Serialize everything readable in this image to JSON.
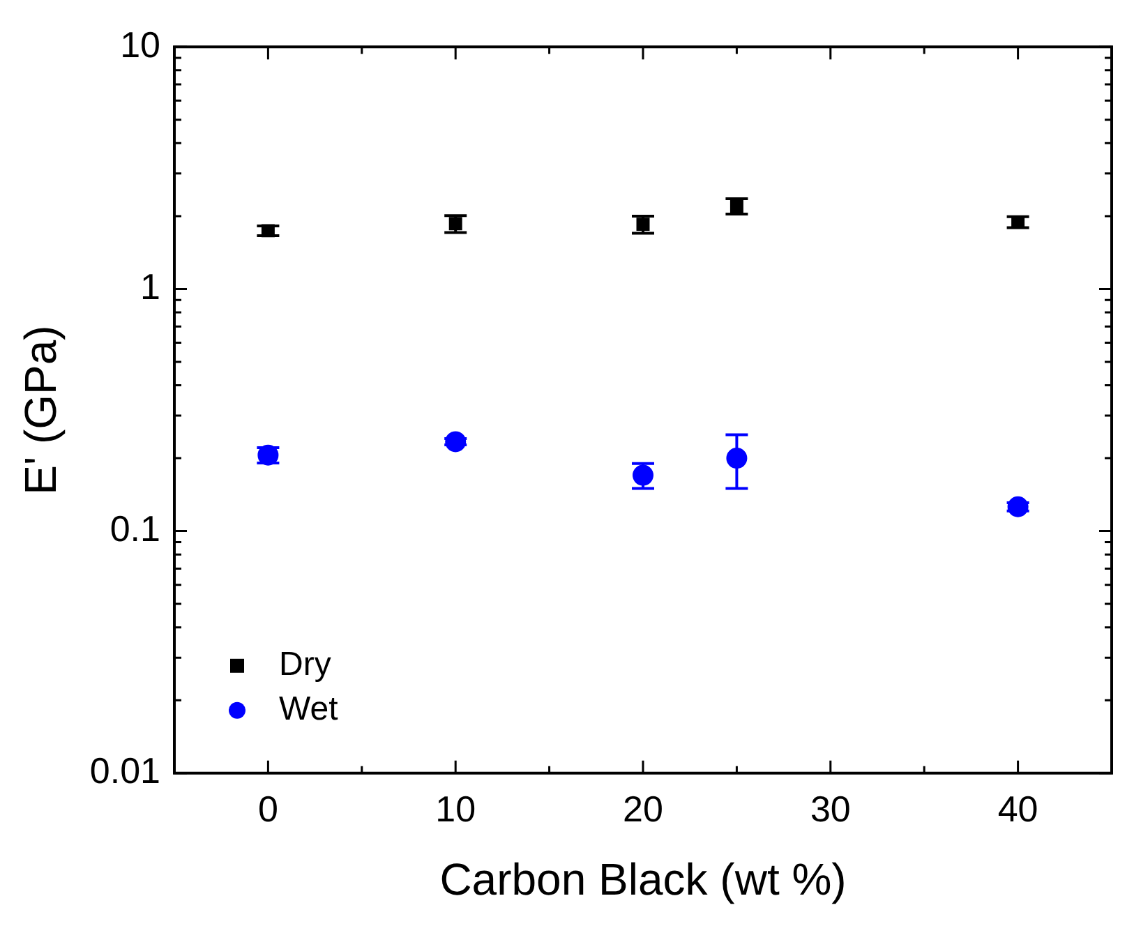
{
  "chart_data": {
    "type": "scatter",
    "xlabel": "Carbon Black (wt %)",
    "ylabel": "E' (GPa)",
    "x": [
      0,
      10,
      20,
      25,
      40
    ],
    "series": [
      {
        "name": "Dry",
        "color": "#000000",
        "marker": "square",
        "values": [
          1.74,
          1.86,
          1.85,
          2.2,
          1.89
        ],
        "errors": [
          0.08,
          0.15,
          0.15,
          0.16,
          0.1
        ]
      },
      {
        "name": "Wet",
        "color": "#0000ff",
        "marker": "circle",
        "values": [
          0.206,
          0.234,
          0.17,
          0.2,
          0.126
        ],
        "errors": [
          0.015,
          0.007,
          0.02,
          0.05,
          0.005
        ]
      }
    ],
    "xlim": [
      -5,
      45
    ],
    "xticks": [
      0,
      {
        "value": 5,
        "label": null
      },
      10,
      {
        "value": 15,
        "label": null
      },
      20,
      {
        "value": 25,
        "label": null
      },
      30,
      {
        "value": 35,
        "label": null
      },
      40
    ],
    "ylim": [
      0.01,
      10
    ],
    "log": "y",
    "yticks": [
      0.01,
      {
        "value": 0.02,
        "label": null
      },
      {
        "value": 0.03,
        "label": null
      },
      {
        "value": 0.04,
        "label": null
      },
      {
        "value": 0.05,
        "label": null
      },
      {
        "value": 0.06,
        "label": null
      },
      {
        "value": 0.07,
        "label": null
      },
      {
        "value": 0.08,
        "label": null
      },
      {
        "value": 0.09,
        "label": null
      },
      0.1,
      {
        "value": 0.2,
        "label": null
      },
      {
        "value": 0.3,
        "label": null
      },
      {
        "value": 0.4,
        "label": null
      },
      {
        "value": 0.5,
        "label": null
      },
      {
        "value": 0.6,
        "label": null
      },
      {
        "value": 0.7,
        "label": null
      },
      {
        "value": 0.8,
        "label": null
      },
      {
        "value": 0.9,
        "label": null
      },
      1,
      {
        "value": 2,
        "label": null
      },
      {
        "value": 3,
        "label": null
      },
      {
        "value": 4,
        "label": null
      },
      {
        "value": 5,
        "label": null
      },
      {
        "value": 6,
        "label": null
      },
      {
        "value": 7,
        "label": null
      },
      {
        "value": 8,
        "label": null
      },
      {
        "value": 9,
        "label": null
      },
      10
    ],
    "grid": false,
    "legend": "bottom left"
  }
}
